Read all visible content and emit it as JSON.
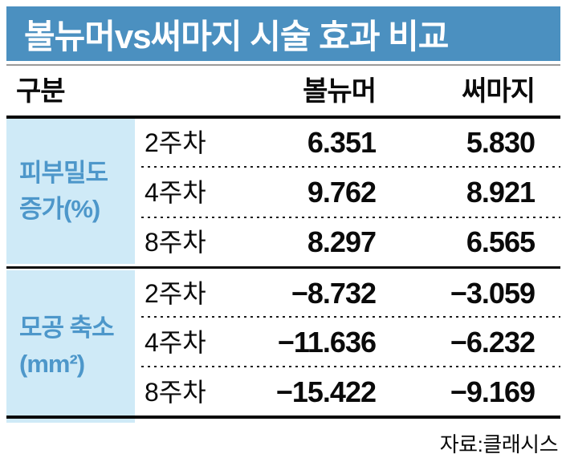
{
  "colors": {
    "title_bg": "#4b90c0",
    "group_cell_bg": "#cfeaf7",
    "group_label_text": "#4d97ca",
    "rule_dark": "#0a0a0a",
    "subline_grey": "#9a9a9a"
  },
  "table": {
    "title": "볼뉴머vs써마지 시술 효과 비교",
    "header": {
      "category": "구분",
      "col1": "볼뉴머",
      "col2": "써마지"
    },
    "groups": [
      {
        "label_line1": "피부밀도",
        "label_line2": "증가(%)",
        "rows": [
          {
            "week": "2주차",
            "vol": "6.351",
            "ther": "5.830"
          },
          {
            "week": "4주차",
            "vol": "9.762",
            "ther": "8.921"
          },
          {
            "week": "8주차",
            "vol": "8.297",
            "ther": "6.565"
          }
        ]
      },
      {
        "label_line1": "모공 축소",
        "label_line2": "(mm²)",
        "rows": [
          {
            "week": "2주차",
            "vol": "−8.732",
            "ther": "−3.059"
          },
          {
            "week": "4주차",
            "vol": "−11.636",
            "ther": "−6.232"
          },
          {
            "week": "8주차",
            "vol": "−15.422",
            "ther": "−9.169"
          }
        ]
      }
    ],
    "source": "자료:클래시스"
  },
  "chart_data": {
    "type": "table",
    "title": "볼뉴머vs써마지 시술 효과 비교",
    "columns": [
      "구분",
      "주차",
      "볼뉴머",
      "써마지"
    ],
    "row_groups": [
      {
        "label": "피부밀도 증가(%)",
        "rows": [
          {
            "week": "2주차",
            "볼뉴머": 6.351,
            "써마지": 5.83
          },
          {
            "week": "4주차",
            "볼뉴머": 9.762,
            "써마지": 8.921
          },
          {
            "week": "8주차",
            "볼뉴머": 8.297,
            "써마지": 6.565
          }
        ]
      },
      {
        "label": "모공 축소(mm²)",
        "rows": [
          {
            "week": "2주차",
            "볼뉴머": -8.732,
            "써마지": -3.059
          },
          {
            "week": "4주차",
            "볼뉴머": -11.636,
            "써마지": -6.232
          },
          {
            "week": "8주차",
            "볼뉴머": -15.422,
            "써마지": -9.169
          }
        ]
      }
    ],
    "source": "자료:클래시스"
  }
}
